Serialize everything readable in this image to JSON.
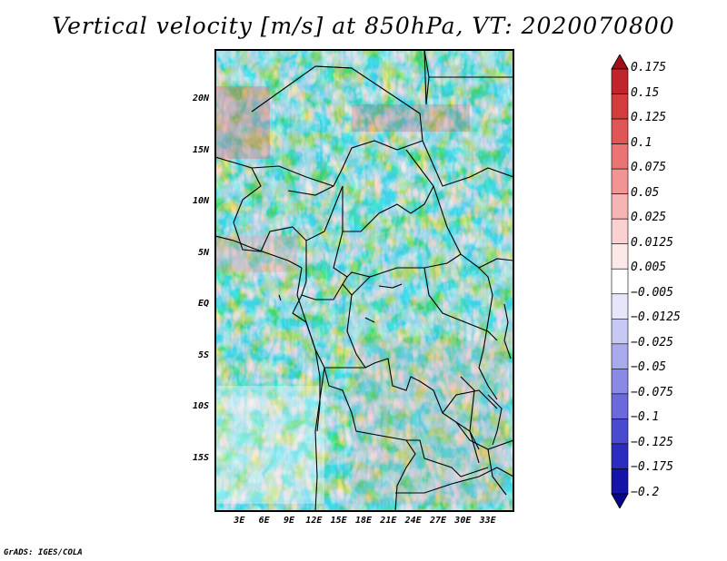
{
  "title": "Vertical velocity [m/s] at 850hPa, VT: 2020070800",
  "credit": "GrADS: IGES/COLA",
  "map": {
    "lon_range": [
      0,
      36
    ],
    "lat_range": [
      -20,
      25
    ],
    "lat_ticks": [
      {
        "value": 20,
        "label": "20N"
      },
      {
        "value": 15,
        "label": "15N"
      },
      {
        "value": 10,
        "label": "10N"
      },
      {
        "value": 5,
        "label": "5N"
      },
      {
        "value": 0,
        "label": "EQ"
      },
      {
        "value": -5,
        "label": "5S"
      },
      {
        "value": -10,
        "label": "10S"
      },
      {
        "value": -15,
        "label": "15S"
      }
    ],
    "lon_ticks": [
      {
        "value": 3,
        "label": "3E"
      },
      {
        "value": 6,
        "label": "6E"
      },
      {
        "value": 9,
        "label": "9E"
      },
      {
        "value": 12,
        "label": "12E"
      },
      {
        "value": 15,
        "label": "15E"
      },
      {
        "value": 18,
        "label": "18E"
      },
      {
        "value": 21,
        "label": "21E"
      },
      {
        "value": 24,
        "label": "24E"
      },
      {
        "value": 27,
        "label": "27E"
      },
      {
        "value": 30,
        "label": "30E"
      },
      {
        "value": 33,
        "label": "33E"
      }
    ]
  },
  "colorbar": {
    "levels": [
      "0.175",
      "0.15",
      "0.125",
      "0.1",
      "0.075",
      "0.05",
      "0.025",
      "0.0125",
      "0.005",
      "-0.005",
      "-0.0125",
      "-0.025",
      "-0.05",
      "-0.075",
      "-0.1",
      "-0.125",
      "-0.175",
      "-0.2"
    ],
    "colors": [
      "#a01018",
      "#c0242c",
      "#d23c3c",
      "#e05656",
      "#ea7474",
      "#f29494",
      "#f7b4b4",
      "#fbd0d0",
      "#fde8e8",
      "#ffffff",
      "#e6e6fa",
      "#c8c8f5",
      "#a9a9ee",
      "#8a8ae6",
      "#6a6adc",
      "#4a4ad0",
      "#2c2cc0",
      "#1414a8",
      "#06068c"
    ]
  }
}
